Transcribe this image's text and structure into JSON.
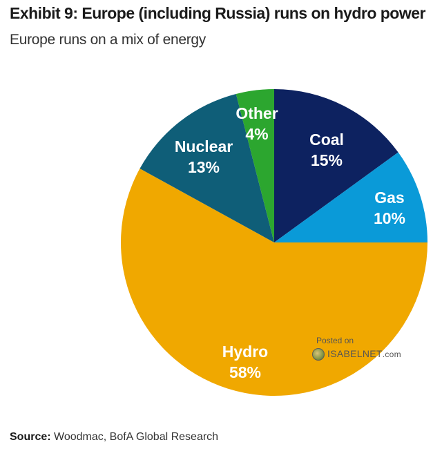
{
  "header": {
    "title": "Exhibit 9: Europe (including Russia) runs on hydro power",
    "subtitle": "Europe runs on a mix of energy"
  },
  "chart_data": {
    "type": "pie",
    "title": "Exhibit 9: Europe (including Russia) runs on hydro power",
    "subtitle": "Europe runs on a mix of energy",
    "slices": [
      {
        "label": "Coal",
        "value": 15,
        "value_label": "15%",
        "color": "#0d2260"
      },
      {
        "label": "Gas",
        "value": 10,
        "value_label": "10%",
        "color": "#0a9ad8"
      },
      {
        "label": "Hydro",
        "value": 58,
        "value_label": "58%",
        "color": "#f0a800"
      },
      {
        "label": "Nuclear",
        "value": 13,
        "value_label": "13%",
        "color": "#0f5e78"
      },
      {
        "label": "Other",
        "value": 4,
        "value_label": "4%",
        "color": "#2ca62f"
      }
    ],
    "start_angle_deg": 0,
    "direction": "clockwise",
    "label_color": "#ffffff",
    "legend": "none"
  },
  "watermark": {
    "posted": "Posted on",
    "site": "ISABELNET",
    "suffix": ".com"
  },
  "source": {
    "label": "Source:",
    "text": "Woodmac, BofA Global Research"
  }
}
